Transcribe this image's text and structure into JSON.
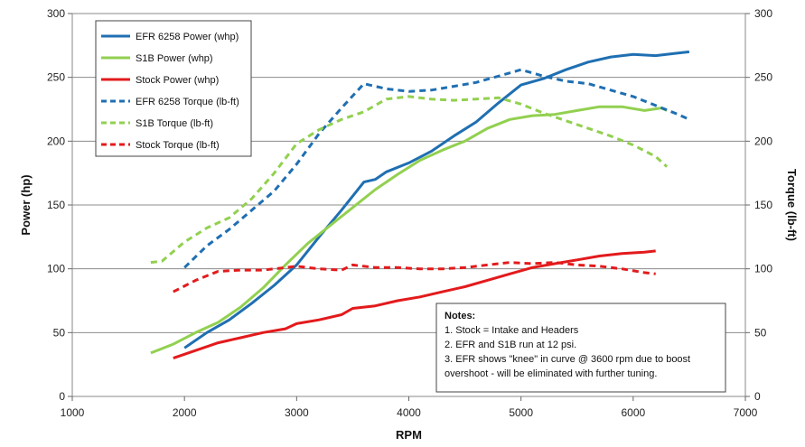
{
  "chart_data": {
    "type": "line",
    "title": "",
    "xlabel": "RPM",
    "ylabel": "Power (hp)",
    "y2label": "Torque (lb-ft)",
    "xlim": [
      1000,
      7000
    ],
    "ylim": [
      0,
      300
    ],
    "y2lim": [
      0,
      300
    ],
    "x_ticks": [
      "1000",
      "2000",
      "3000",
      "4000",
      "5000",
      "6000",
      "7000"
    ],
    "y_ticks": [
      "0",
      "50",
      "100",
      "150",
      "200",
      "250",
      "300"
    ],
    "y2_ticks": [
      "0",
      "50",
      "100",
      "150",
      "200",
      "250",
      "300"
    ],
    "grid": true,
    "legend_position": "top-left",
    "series": [
      {
        "name": "EFR 6258 Power (whp)",
        "color": "#1f6fb2",
        "dash": "solid",
        "points": [
          [
            2000,
            38
          ],
          [
            2200,
            50
          ],
          [
            2400,
            60
          ],
          [
            2600,
            73
          ],
          [
            2800,
            87
          ],
          [
            3000,
            103
          ],
          [
            3200,
            125
          ],
          [
            3400,
            146
          ],
          [
            3600,
            168
          ],
          [
            3700,
            170
          ],
          [
            3800,
            176
          ],
          [
            4000,
            183
          ],
          [
            4200,
            192
          ],
          [
            4400,
            204
          ],
          [
            4600,
            215
          ],
          [
            4800,
            230
          ],
          [
            5000,
            244
          ],
          [
            5200,
            249
          ],
          [
            5400,
            256
          ],
          [
            5600,
            262
          ],
          [
            5800,
            266
          ],
          [
            6000,
            268
          ],
          [
            6200,
            267
          ],
          [
            6400,
            269
          ],
          [
            6500,
            270
          ]
        ]
      },
      {
        "name": "S1B Power (whp)",
        "color": "#92d050",
        "dash": "solid",
        "points": [
          [
            1700,
            34
          ],
          [
            1900,
            41
          ],
          [
            2100,
            50
          ],
          [
            2300,
            58
          ],
          [
            2500,
            70
          ],
          [
            2700,
            85
          ],
          [
            2900,
            103
          ],
          [
            3100,
            120
          ],
          [
            3300,
            134
          ],
          [
            3500,
            148
          ],
          [
            3700,
            162
          ],
          [
            3900,
            174
          ],
          [
            4100,
            185
          ],
          [
            4300,
            193
          ],
          [
            4500,
            200
          ],
          [
            4700,
            210
          ],
          [
            4900,
            217
          ],
          [
            5100,
            220
          ],
          [
            5300,
            221
          ],
          [
            5500,
            224
          ],
          [
            5700,
            227
          ],
          [
            5900,
            227
          ],
          [
            6100,
            224
          ],
          [
            6250,
            226
          ],
          [
            6300,
            224
          ]
        ]
      },
      {
        "name": "Stock Power (whp)",
        "color": "#e31a1c",
        "dash": "solid",
        "points": [
          [
            1900,
            30
          ],
          [
            2100,
            36
          ],
          [
            2300,
            42
          ],
          [
            2500,
            46
          ],
          [
            2700,
            50
          ],
          [
            2900,
            53
          ],
          [
            3000,
            57
          ],
          [
            3200,
            60
          ],
          [
            3400,
            64
          ],
          [
            3500,
            69
          ],
          [
            3700,
            71
          ],
          [
            3900,
            75
          ],
          [
            4100,
            78
          ],
          [
            4300,
            82
          ],
          [
            4500,
            86
          ],
          [
            4700,
            91
          ],
          [
            4900,
            96
          ],
          [
            5100,
            101
          ],
          [
            5300,
            104
          ],
          [
            5500,
            107
          ],
          [
            5700,
            110
          ],
          [
            5900,
            112
          ],
          [
            6100,
            113
          ],
          [
            6200,
            114
          ]
        ]
      },
      {
        "name": "EFR 6258 Torque (lb-ft)",
        "color": "#1f6fb2",
        "dash": "7,5",
        "points": [
          [
            2000,
            101
          ],
          [
            2200,
            118
          ],
          [
            2400,
            131
          ],
          [
            2600,
            146
          ],
          [
            2800,
            161
          ],
          [
            3000,
            182
          ],
          [
            3200,
            206
          ],
          [
            3400,
            226
          ],
          [
            3600,
            245
          ],
          [
            3800,
            241
          ],
          [
            4000,
            239
          ],
          [
            4200,
            240
          ],
          [
            4400,
            243
          ],
          [
            4600,
            246
          ],
          [
            4800,
            251
          ],
          [
            5000,
            256
          ],
          [
            5200,
            251
          ],
          [
            5400,
            247
          ],
          [
            5600,
            245
          ],
          [
            5800,
            240
          ],
          [
            6000,
            235
          ],
          [
            6200,
            228
          ],
          [
            6400,
            221
          ],
          [
            6500,
            217
          ]
        ]
      },
      {
        "name": "S1B Torque (lb-ft)",
        "color": "#92d050",
        "dash": "7,5",
        "points": [
          [
            1700,
            105
          ],
          [
            1800,
            106
          ],
          [
            2000,
            121
          ],
          [
            2200,
            132
          ],
          [
            2400,
            140
          ],
          [
            2600,
            155
          ],
          [
            2800,
            175
          ],
          [
            3000,
            198
          ],
          [
            3200,
            209
          ],
          [
            3400,
            217
          ],
          [
            3600,
            223
          ],
          [
            3800,
            233
          ],
          [
            4000,
            235
          ],
          [
            4200,
            233
          ],
          [
            4400,
            232
          ],
          [
            4600,
            233
          ],
          [
            4800,
            234
          ],
          [
            5000,
            229
          ],
          [
            5200,
            222
          ],
          [
            5400,
            216
          ],
          [
            5600,
            210
          ],
          [
            5800,
            204
          ],
          [
            6000,
            197
          ],
          [
            6200,
            188
          ],
          [
            6300,
            180
          ]
        ]
      },
      {
        "name": "Stock Torque (lb-ft)",
        "color": "#e31a1c",
        "dash": "7,5",
        "points": [
          [
            1900,
            82
          ],
          [
            2100,
            91
          ],
          [
            2300,
            98
          ],
          [
            2500,
            99
          ],
          [
            2700,
            99
          ],
          [
            2900,
            101
          ],
          [
            3000,
            102
          ],
          [
            3200,
            100
          ],
          [
            3400,
            99
          ],
          [
            3500,
            103
          ],
          [
            3700,
            101
          ],
          [
            3900,
            101
          ],
          [
            4100,
            100
          ],
          [
            4300,
            100
          ],
          [
            4500,
            101
          ],
          [
            4700,
            103
          ],
          [
            4900,
            105
          ],
          [
            5100,
            104
          ],
          [
            5300,
            105
          ],
          [
            5500,
            103
          ],
          [
            5700,
            102
          ],
          [
            5900,
            100
          ],
          [
            6100,
            97
          ],
          [
            6200,
            96
          ]
        ]
      }
    ],
    "notes": {
      "title": "Notes:",
      "lines": [
        "1.  Stock = Intake and Headers",
        "2.  EFR and S1B run at 12 psi.",
        "3.  EFR shows \"knee\" in curve @ 3600 rpm due to boost",
        "overshoot - will be eliminated with further tuning."
      ]
    }
  }
}
